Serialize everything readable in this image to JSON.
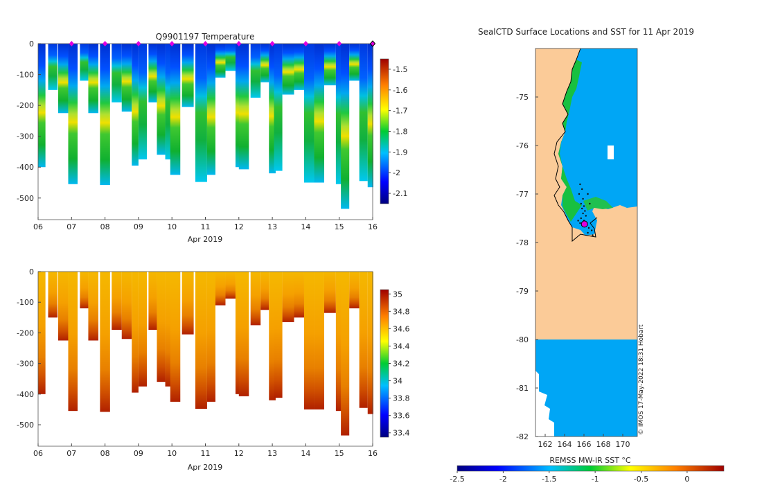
{
  "figure": {
    "watermark": "© IMOS 17-May-2022 18:31 Hobart"
  },
  "chart_data": [
    {
      "id": "temperature-section",
      "type": "heatmap",
      "title": "Q9901197  Temperature",
      "xlabel": "Apr 2019",
      "ylabel": "",
      "xlim": [
        6,
        16
      ],
      "ylim": [
        -570,
        0
      ],
      "x_ticks": [
        "06",
        "07",
        "08",
        "09",
        "10",
        "11",
        "12",
        "13",
        "14",
        "15",
        "16"
      ],
      "y_ticks": [
        "0",
        "-100",
        "-200",
        "-300",
        "-400",
        "-500"
      ],
      "colorbar": {
        "min": -2.15,
        "max": -1.45,
        "ticks": [
          "-1.5",
          "-1.6",
          "-1.7",
          "-1.8",
          "-1.9",
          "-2",
          "-2.1"
        ]
      },
      "markers": {
        "symbol": "diamond",
        "color": "#e000e0",
        "x": [
          7,
          8,
          9,
          10,
          11,
          12,
          13,
          14,
          15,
          16
        ]
      },
      "profiles": [
        {
          "x": 6.0,
          "w": 0.22,
          "depth": 400
        },
        {
          "x": 6.3,
          "w": 0.28,
          "depth": 150
        },
        {
          "x": 6.6,
          "w": 0.3,
          "depth": 225
        },
        {
          "x": 6.9,
          "w": 0.28,
          "depth": 455
        },
        {
          "x": 7.25,
          "w": 0.25,
          "depth": 120
        },
        {
          "x": 7.5,
          "w": 0.3,
          "depth": 225
        },
        {
          "x": 7.85,
          "w": 0.3,
          "depth": 458
        },
        {
          "x": 8.2,
          "w": 0.3,
          "depth": 190
        },
        {
          "x": 8.5,
          "w": 0.3,
          "depth": 220
        },
        {
          "x": 8.8,
          "w": 0.2,
          "depth": 395
        },
        {
          "x": 9.0,
          "w": 0.25,
          "depth": 375
        },
        {
          "x": 9.3,
          "w": 0.25,
          "depth": 190
        },
        {
          "x": 9.55,
          "w": 0.25,
          "depth": 360
        },
        {
          "x": 9.8,
          "w": 0.2,
          "depth": 375
        },
        {
          "x": 9.95,
          "w": 0.3,
          "depth": 425
        },
        {
          "x": 10.3,
          "w": 0.35,
          "depth": 205
        },
        {
          "x": 10.7,
          "w": 0.35,
          "depth": 448
        },
        {
          "x": 11.05,
          "w": 0.25,
          "depth": 425
        },
        {
          "x": 11.3,
          "w": 0.3,
          "depth": 110
        },
        {
          "x": 11.6,
          "w": 0.3,
          "depth": 88
        },
        {
          "x": 11.9,
          "w": 0.2,
          "depth": 400
        },
        {
          "x": 12.0,
          "w": 0.3,
          "depth": 407
        },
        {
          "x": 12.35,
          "w": 0.3,
          "depth": 175
        },
        {
          "x": 12.65,
          "w": 0.25,
          "depth": 125
        },
        {
          "x": 12.9,
          "w": 0.2,
          "depth": 420
        },
        {
          "x": 13.05,
          "w": 0.25,
          "depth": 412
        },
        {
          "x": 13.3,
          "w": 0.35,
          "depth": 165
        },
        {
          "x": 13.65,
          "w": 0.3,
          "depth": 150
        },
        {
          "x": 13.95,
          "w": 0.3,
          "depth": 450
        },
        {
          "x": 14.25,
          "w": 0.3,
          "depth": 450
        },
        {
          "x": 14.55,
          "w": 0.35,
          "depth": 135
        },
        {
          "x": 14.9,
          "w": 0.2,
          "depth": 455
        },
        {
          "x": 15.05,
          "w": 0.25,
          "depth": 535
        },
        {
          "x": 15.3,
          "w": 0.3,
          "depth": 120
        },
        {
          "x": 15.6,
          "w": 0.25,
          "depth": 445
        },
        {
          "x": 15.85,
          "w": 0.17,
          "depth": 465
        }
      ]
    },
    {
      "id": "salinity-section",
      "type": "heatmap",
      "title": "",
      "xlabel": "Apr 2019",
      "ylabel": "",
      "xlim": [
        6,
        16
      ],
      "ylim": [
        -570,
        0
      ],
      "x_ticks": [
        "06",
        "07",
        "08",
        "09",
        "10",
        "11",
        "12",
        "13",
        "14",
        "15",
        "16"
      ],
      "y_ticks": [
        "0",
        "-100",
        "-200",
        "-300",
        "-400",
        "-500"
      ],
      "colorbar": {
        "min": 33.35,
        "max": 35.05,
        "ticks": [
          "35",
          "34.8",
          "34.6",
          "34.4",
          "34.2",
          "34",
          "33.8",
          "33.6",
          "33.4"
        ]
      }
    },
    {
      "id": "sst-map",
      "type": "heatmap",
      "title": "SealCTD Surface Locations and SST for 11 Apr 2019",
      "xlabel": "REMSS MW-IR SST °C",
      "lon_range": [
        161,
        171.5
      ],
      "lat_range": [
        -82,
        -74
      ],
      "x_ticks": [
        "162",
        "164",
        "166",
        "168",
        "170"
      ],
      "y_ticks": [
        "-75",
        "-76",
        "-77",
        "-78",
        "-79",
        "-80",
        "-81",
        "-82"
      ],
      "colorbar": {
        "min": -2.5,
        "max": 0.4,
        "ticks": [
          "-2.5",
          "-2",
          "-1.5",
          "-1",
          "-0.5",
          "0"
        ]
      },
      "track_points": [
        [
          165.6,
          -76.8
        ],
        [
          165.8,
          -76.9
        ],
        [
          165.5,
          -77.0
        ],
        [
          165.9,
          -77.1
        ],
        [
          165.7,
          -77.2
        ],
        [
          166.0,
          -77.25
        ],
        [
          165.8,
          -77.3
        ],
        [
          166.1,
          -77.35
        ],
        [
          165.9,
          -77.4
        ],
        [
          166.2,
          -77.45
        ],
        [
          165.7,
          -77.5
        ],
        [
          166.0,
          -77.55
        ],
        [
          166.3,
          -77.6
        ],
        [
          165.9,
          -77.65
        ],
        [
          166.5,
          -77.7
        ],
        [
          166.8,
          -77.75
        ],
        [
          166.4,
          -77.8
        ],
        [
          166.9,
          -77.85
        ],
        [
          165.4,
          -77.55
        ],
        [
          165.6,
          -77.6
        ],
        [
          166.6,
          -77.2
        ],
        [
          166.4,
          -77.0
        ]
      ],
      "highlight": {
        "lon": 166.05,
        "lat": -77.62,
        "color": "#e000e0"
      }
    }
  ]
}
